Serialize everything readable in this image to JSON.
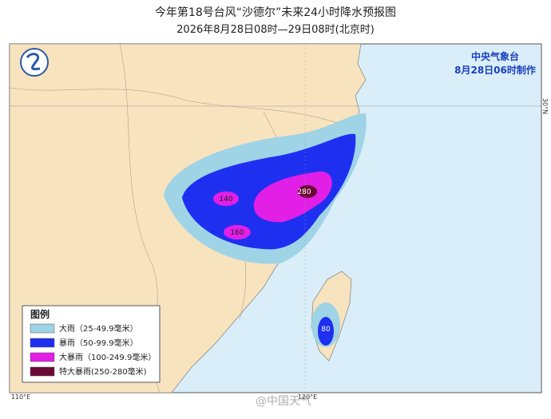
{
  "header": {
    "title": "今年第18号台风“沙德尔”未来24小时降水预报图",
    "subtitle": "2026年8月28日08时—29日08时(北京时)"
  },
  "issuer": {
    "agency": "中央气象台",
    "issued": "8月28日06时制作"
  },
  "axes": {
    "lon_left": "110°E",
    "lon_mid": "120°E",
    "lat": "30°N"
  },
  "legend": {
    "title": "图例",
    "items": [
      {
        "label": "大雨（25-49.9毫米）",
        "color": "#9fd3e6"
      },
      {
        "label": "暴雨（50-99.9毫米）",
        "color": "#1f2ff0"
      },
      {
        "label": "大暴雨（100-249.9毫米）",
        "color": "#e21fe6"
      },
      {
        "label": "特大暴雨(250-280毫米)",
        "color": "#6b0a34"
      }
    ]
  },
  "contour_labels": [
    140,
    160,
    280,
    80
  ],
  "watermark": "@中国天气"
}
